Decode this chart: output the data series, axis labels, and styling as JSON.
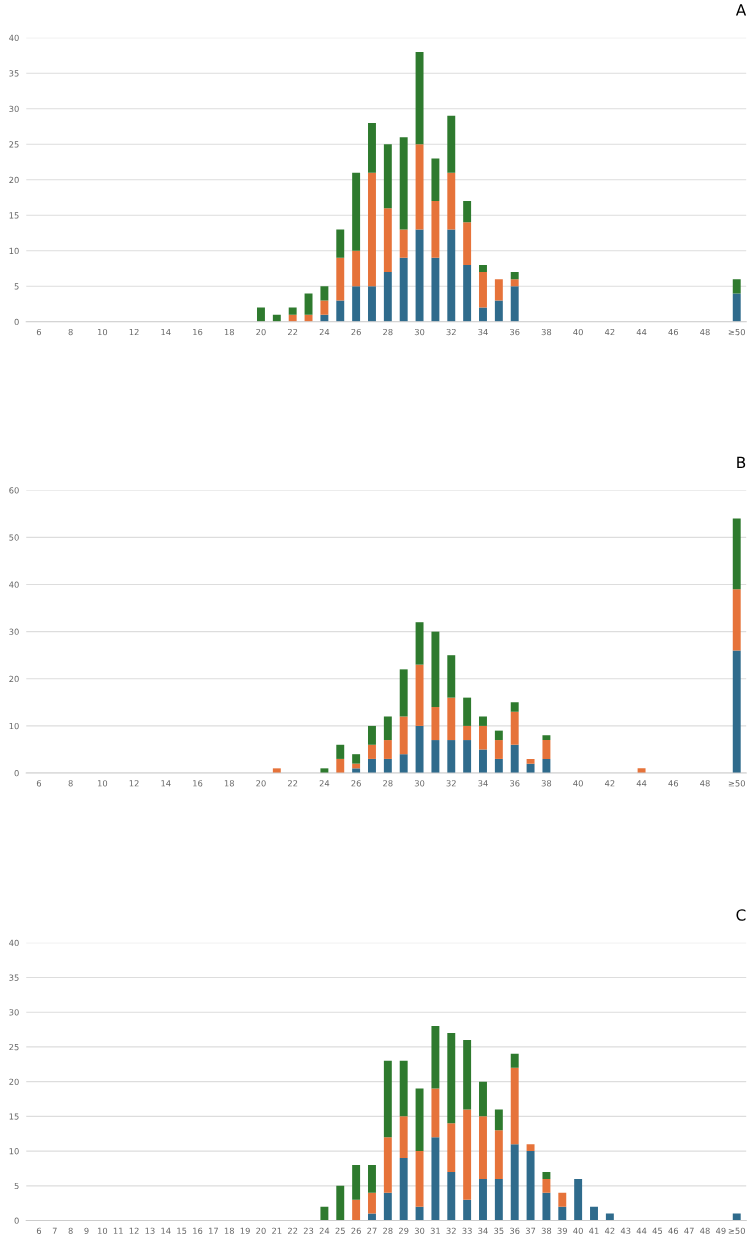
{
  "chart_data": [
    {
      "type": "bar",
      "title": "A",
      "stacked": true,
      "grid": "y",
      "categories": [
        "6",
        null,
        "8",
        null,
        "10",
        null,
        "12",
        null,
        "14",
        null,
        "16",
        null,
        "18",
        null,
        "20",
        null,
        "22",
        null,
        "24",
        null,
        "26",
        null,
        "28",
        null,
        "30",
        null,
        "32",
        null,
        "34",
        null,
        "36",
        null,
        "38",
        null,
        "40",
        null,
        "42",
        null,
        "44",
        null,
        "46",
        null,
        "48",
        null,
        "≥50"
      ],
      "ylim": [
        0,
        40
      ],
      "yticks": [
        0,
        5,
        10,
        15,
        20,
        25,
        30,
        35,
        40
      ],
      "series": [
        {
          "color": "#2f6b8c",
          "values": [
            0,
            0,
            0,
            0,
            0,
            0,
            0,
            0,
            0,
            0,
            0,
            0,
            0,
            0,
            0,
            0,
            0,
            0,
            1,
            3,
            5,
            5,
            7,
            9,
            13,
            9,
            13,
            8,
            2,
            3,
            5,
            0,
            0,
            0,
            0,
            0,
            0,
            0,
            0,
            0,
            0,
            0,
            0,
            0,
            4
          ]
        },
        {
          "color": "#e6733a",
          "values": [
            0,
            0,
            0,
            0,
            0,
            0,
            0,
            0,
            0,
            0,
            0,
            0,
            0,
            0,
            0,
            0,
            1,
            1,
            2,
            6,
            5,
            16,
            9,
            4,
            12,
            8,
            8,
            6,
            5,
            3,
            1,
            0,
            0,
            0,
            0,
            0,
            0,
            0,
            0,
            0,
            0,
            0,
            0,
            0,
            0
          ]
        },
        {
          "color": "#2e7a2e",
          "values": [
            0,
            0,
            0,
            0,
            0,
            0,
            0,
            0,
            0,
            0,
            0,
            0,
            0,
            0,
            2,
            1,
            1,
            3,
            2,
            4,
            11,
            7,
            9,
            13,
            13,
            6,
            8,
            3,
            1,
            0,
            1,
            0,
            0,
            0,
            0,
            0,
            0,
            0,
            0,
            0,
            0,
            0,
            0,
            0,
            2
          ]
        }
      ]
    },
    {
      "type": "bar",
      "title": "B",
      "stacked": true,
      "grid": "y",
      "categories": [
        "6",
        null,
        "8",
        null,
        "10",
        null,
        "12",
        null,
        "14",
        null,
        "16",
        null,
        "18",
        null,
        "20",
        null,
        "22",
        null,
        "24",
        null,
        "26",
        null,
        "28",
        null,
        "30",
        null,
        "32",
        null,
        "34",
        null,
        "36",
        null,
        "38",
        null,
        "40",
        null,
        "42",
        null,
        "44",
        null,
        "46",
        null,
        "48",
        null,
        "≥50"
      ],
      "ylim": [
        0,
        60
      ],
      "yticks": [
        0,
        10,
        20,
        30,
        40,
        50,
        60
      ],
      "series": [
        {
          "color": "#2f6b8c",
          "values": [
            0,
            0,
            0,
            0,
            0,
            0,
            0,
            0,
            0,
            0,
            0,
            0,
            0,
            0,
            0,
            0,
            0,
            0,
            0,
            0,
            1,
            3,
            3,
            4,
            10,
            7,
            7,
            7,
            5,
            3,
            6,
            2,
            3,
            0,
            0,
            0,
            0,
            0,
            0,
            0,
            0,
            0,
            0,
            0,
            26
          ]
        },
        {
          "color": "#e6733a",
          "values": [
            0,
            0,
            0,
            0,
            0,
            0,
            0,
            0,
            0,
            0,
            0,
            0,
            0,
            0,
            0,
            1,
            0,
            0,
            0,
            3,
            1,
            3,
            4,
            8,
            13,
            7,
            9,
            3,
            5,
            4,
            7,
            1,
            4,
            0,
            0,
            0,
            0,
            0,
            1,
            0,
            0,
            0,
            0,
            0,
            13
          ]
        },
        {
          "color": "#2e7a2e",
          "values": [
            0,
            0,
            0,
            0,
            0,
            0,
            0,
            0,
            0,
            0,
            0,
            0,
            0,
            0,
            0,
            0,
            0,
            0,
            1,
            3,
            2,
            4,
            5,
            10,
            9,
            16,
            9,
            6,
            2,
            2,
            2,
            0,
            1,
            0,
            0,
            0,
            0,
            0,
            0,
            0,
            0,
            0,
            0,
            0,
            15
          ]
        }
      ]
    },
    {
      "type": "bar",
      "title": "C",
      "stacked": true,
      "grid": "y",
      "categories": [
        "6",
        "7",
        "8",
        "9",
        "10",
        "11",
        "12",
        "13",
        "14",
        "15",
        "16",
        "17",
        "18",
        "19",
        "20",
        "21",
        "22",
        "23",
        "24",
        "25",
        "26",
        "27",
        "28",
        "29",
        "30",
        "31",
        "32",
        "33",
        "34",
        "35",
        "36",
        "37",
        "38",
        "39",
        "40",
        "41",
        "42",
        "43",
        "44",
        "45",
        "46",
        "47",
        "48",
        "49",
        "≥50"
      ],
      "ylim": [
        0,
        40
      ],
      "yticks": [
        0,
        5,
        10,
        15,
        20,
        25,
        30,
        35,
        40
      ],
      "series": [
        {
          "color": "#2f6b8c",
          "values": [
            0,
            0,
            0,
            0,
            0,
            0,
            0,
            0,
            0,
            0,
            0,
            0,
            0,
            0,
            0,
            0,
            0,
            0,
            0,
            0,
            0,
            1,
            4,
            9,
            2,
            12,
            7,
            3,
            6,
            6,
            11,
            10,
            4,
            2,
            6,
            2,
            1,
            0,
            0,
            0,
            0,
            0,
            0,
            0,
            1
          ]
        },
        {
          "color": "#e6733a",
          "values": [
            0,
            0,
            0,
            0,
            0,
            0,
            0,
            0,
            0,
            0,
            0,
            0,
            0,
            0,
            0,
            0,
            0,
            0,
            0,
            0,
            3,
            3,
            8,
            6,
            8,
            7,
            7,
            13,
            9,
            7,
            11,
            1,
            2,
            2,
            0,
            0,
            0,
            0,
            0,
            0,
            0,
            0,
            0,
            0,
            0
          ]
        },
        {
          "color": "#2e7a2e",
          "values": [
            0,
            0,
            0,
            0,
            0,
            0,
            0,
            0,
            0,
            0,
            0,
            0,
            0,
            0,
            0,
            0,
            0,
            0,
            2,
            5,
            5,
            4,
            11,
            8,
            9,
            9,
            13,
            10,
            5,
            3,
            2,
            0,
            1,
            0,
            0,
            0,
            0,
            0,
            0,
            0,
            0,
            0,
            0,
            0,
            0
          ]
        }
      ]
    }
  ]
}
